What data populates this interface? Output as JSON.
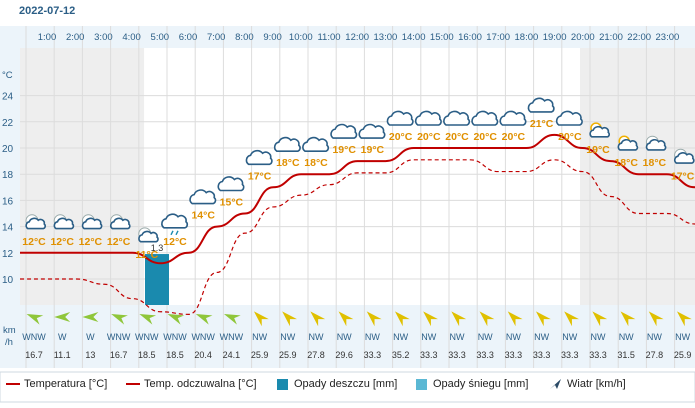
{
  "date_title": "2022-07-12",
  "axis_unit_temp": "°C",
  "wind_unit_line1": "km",
  "wind_unit_line2": "/h",
  "colors": {
    "temperature": "#c00000",
    "feels_like": "#c00000",
    "rain": "#1a8aae",
    "snow": "#5bb8d4",
    "temp_label": "#e09000",
    "grid": "#dcdcdc",
    "header_bg": "#ecf4fa",
    "night_bg": "#eeeeee"
  },
  "legend": {
    "temperature": "Temperatura [°C]",
    "feels_like": "Temp. odczuwalna [°C]",
    "rain": "Opady deszczu [mm]",
    "snow": "Opady śniegu [mm]",
    "wind": "Wiatr [km/h]"
  },
  "chart_data": {
    "type": "line",
    "hours": [
      "1:00",
      "2:00",
      "3:00",
      "4:00",
      "5:00",
      "6:00",
      "7:00",
      "8:00",
      "9:00",
      "10:00",
      "11:00",
      "12:00",
      "13:00",
      "14:00",
      "15:00",
      "16:00",
      "17:00",
      "18:00",
      "19:00",
      "20:00",
      "21:00",
      "22:00",
      "23:00"
    ],
    "temp_labels": [
      "12°C",
      "12°C",
      "12°C",
      "12°C",
      "11°C",
      "12°C",
      "14°C",
      "15°C",
      "17°C",
      "18°C",
      "18°C",
      "19°C",
      "19°C",
      "20°C",
      "20°C",
      "20°C",
      "20°C",
      "20°C",
      "21°C",
      "20°C",
      "19°C",
      "18°C",
      "18°C",
      "17°C"
    ],
    "temperature_curve": [
      12,
      12,
      12,
      12,
      12,
      11.2,
      12,
      14,
      15,
      17,
      18,
      18,
      19,
      19,
      20,
      20,
      20,
      20,
      20,
      21,
      20,
      19,
      18,
      18,
      17
    ],
    "feels_like_curve": [
      10,
      10,
      10,
      9.6,
      8.5,
      7.5,
      7.3,
      10.5,
      13.5,
      15.5,
      16.4,
      17.2,
      18.1,
      18.1,
      19.1,
      19.1,
      19.1,
      18.2,
      18.2,
      19.1,
      18.2,
      16.3,
      15,
      15,
      14.2
    ],
    "rain": {
      "hour": "6:00",
      "value": 1.3,
      "label": "1.3"
    },
    "y_ticks": [
      10,
      12,
      14,
      16,
      18,
      20,
      22,
      24
    ],
    "ylim": [
      6,
      26
    ],
    "icons": [
      "partly-cloudy-night",
      "partly-cloudy-night",
      "partly-cloudy-night",
      "partly-cloudy-night",
      "partly-cloudy-night",
      "cloud-rain",
      "cloud",
      "cloud",
      "cloud",
      "cloud",
      "cloud",
      "cloud",
      "cloud",
      "cloud",
      "cloud",
      "cloud",
      "cloud",
      "cloud",
      "cloud",
      "cloud",
      "partly-cloudy-day",
      "partly-cloudy-day",
      "partly-cloudy-night",
      "partly-cloudy-night"
    ],
    "wind_dir": [
      "WNW",
      "W",
      "W",
      "WNW",
      "WNW",
      "WNW",
      "WNW",
      "WNW",
      "NW",
      "NW",
      "NW",
      "NW",
      "NW",
      "NW",
      "NW",
      "NW",
      "NW",
      "NW",
      "NW",
      "NW",
      "NW",
      "NW",
      "NW",
      "NW"
    ],
    "wind_speed": [
      "16.7",
      "11.1",
      "13",
      "16.7",
      "18.5",
      "18.5",
      "20.4",
      "24.1",
      "25.9",
      "25.9",
      "27.8",
      "29.6",
      "33.3",
      "35.2",
      "33.3",
      "33.3",
      "33.3",
      "33.3",
      "33.3",
      "33.3",
      "33.3",
      "31.5",
      "27.8",
      "25.9"
    ]
  }
}
